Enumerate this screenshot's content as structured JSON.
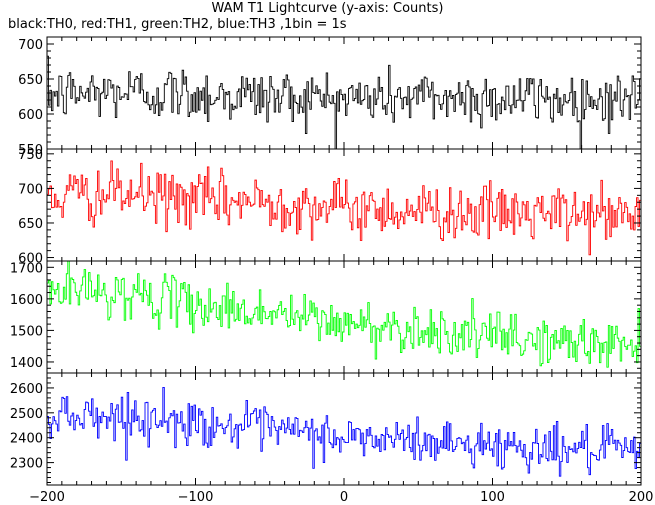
{
  "chart_data": {
    "type": "line",
    "title": "WAM T1 Lightcurve (y-axis: Counts)",
    "subtitle": "black:TH0, red:TH1, green:TH2, blue:TH3 ,1bin = 1s",
    "xlim": [
      -200,
      200
    ],
    "x_ticks": [
      -200,
      -100,
      0,
      100,
      200
    ],
    "x_tick_labels": [
      "−200",
      "−100",
      "0",
      "100",
      "200"
    ],
    "bin_seconds": 1,
    "panels": [
      {
        "series_name": "TH0",
        "color": "#000000",
        "ylim": [
          550,
          710
        ],
        "y_ticks": [
          550,
          600,
          650,
          700
        ],
        "trend": {
          "x": [
            -200,
            -150,
            -100,
            -50,
            0,
            50,
            100,
            150,
            200
          ],
          "y": [
            627,
            632,
            628,
            625,
            622,
            624,
            623,
            621,
            622
          ]
        },
        "noise_sd": 20
      },
      {
        "series_name": "TH1",
        "color": "#ff0000",
        "ylim": [
          595,
          757
        ],
        "y_ticks": [
          600,
          650,
          700,
          750
        ],
        "trend": {
          "x": [
            -200,
            -150,
            -100,
            -50,
            0,
            50,
            100,
            150,
            200
          ],
          "y": [
            688,
            692,
            684,
            680,
            672,
            668,
            664,
            662,
            660
          ]
        },
        "noise_sd": 20
      },
      {
        "series_name": "TH2",
        "color": "#00ff00",
        "ylim": [
          1365,
          1720
        ],
        "y_ticks": [
          1400,
          1500,
          1600,
          1700
        ],
        "trend": {
          "x": [
            -200,
            -150,
            -100,
            -50,
            0,
            50,
            100,
            150,
            200
          ],
          "y": [
            1630,
            1620,
            1580,
            1555,
            1520,
            1505,
            1480,
            1460,
            1455
          ]
        },
        "noise_sd": 38
      },
      {
        "series_name": "TH3",
        "color": "#0000ff",
        "ylim": [
          2210,
          2660
        ],
        "y_ticks": [
          2300,
          2400,
          2500,
          2600
        ],
        "trend": {
          "x": [
            -200,
            -150,
            -100,
            -50,
            0,
            50,
            100,
            150,
            200
          ],
          "y": [
            2500,
            2485,
            2460,
            2430,
            2400,
            2385,
            2370,
            2355,
            2340
          ]
        },
        "noise_sd": 45
      }
    ]
  }
}
